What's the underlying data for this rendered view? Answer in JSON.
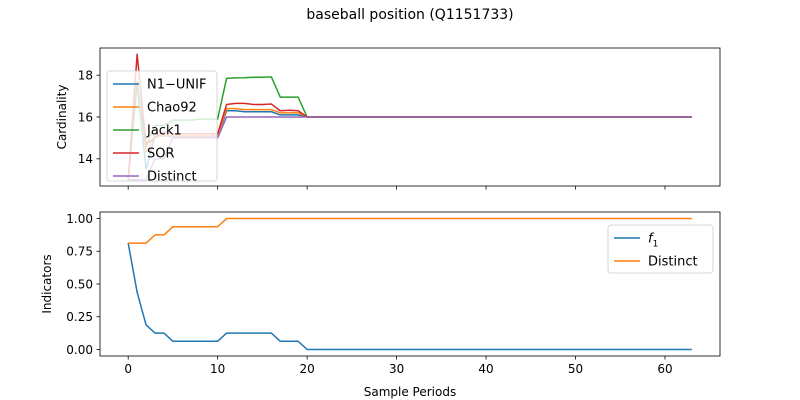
{
  "figure": {
    "suptitle": "baseball position (Q1151733)"
  },
  "chart_data": [
    {
      "type": "line",
      "ylabel": "Cardinality",
      "xlim": [
        -3.15,
        66.15
      ],
      "ylim": [
        12.7,
        19.3
      ],
      "yticks": [
        14,
        16,
        18
      ],
      "ytick_labels": [
        "14",
        "16",
        "18"
      ],
      "legend_position": "upper-left",
      "series": [
        {
          "name": "N1−UNIF",
          "color": "#1f77b4",
          "x": [
            0,
            1,
            2,
            3,
            4,
            5,
            6,
            7,
            8,
            9,
            10,
            11,
            12,
            13,
            14,
            15,
            16,
            17,
            18,
            19,
            20,
            63
          ],
          "y": [
            13.0,
            17.6,
            13.5,
            15.1,
            15.1,
            15.05,
            15.05,
            15.05,
            15.05,
            15.05,
            15.05,
            16.3,
            16.3,
            16.25,
            16.25,
            16.25,
            16.25,
            16.1,
            16.1,
            16.1,
            16.0,
            16.0
          ]
        },
        {
          "name": "Chao92",
          "color": "#ff7f0e",
          "x": [
            0,
            1,
            2,
            3,
            4,
            5,
            6,
            7,
            8,
            9,
            10,
            11,
            12,
            13,
            14,
            15,
            16,
            17,
            18,
            19,
            20,
            63
          ],
          "y": [
            13.0,
            17.7,
            14.3,
            15.1,
            15.1,
            15.1,
            15.1,
            15.1,
            15.1,
            15.1,
            15.1,
            16.4,
            16.4,
            16.35,
            16.35,
            16.35,
            16.35,
            16.2,
            16.2,
            16.2,
            16.0,
            16.0
          ]
        },
        {
          "name": "Jack1",
          "color": "#2ca02c",
          "x": [
            0,
            1,
            2,
            3,
            4,
            5,
            6,
            7,
            8,
            9,
            10,
            11,
            12,
            13,
            14,
            15,
            16,
            17,
            18,
            19,
            20,
            63
          ],
          "y": [
            13.0,
            17.7,
            14.6,
            15.6,
            15.6,
            15.85,
            15.85,
            15.85,
            15.9,
            15.9,
            15.9,
            17.85,
            17.87,
            17.88,
            17.9,
            17.9,
            17.92,
            16.95,
            16.95,
            16.95,
            16.0,
            16.0
          ]
        },
        {
          "name": "SOR",
          "color": "#d62728",
          "x": [
            0,
            1,
            2,
            3,
            4,
            5,
            6,
            7,
            8,
            9,
            10,
            11,
            12,
            13,
            14,
            15,
            16,
            17,
            18,
            19,
            20,
            63
          ],
          "y": [
            13.0,
            19.0,
            14.7,
            15.0,
            15.3,
            15.2,
            15.2,
            15.2,
            15.2,
            15.2,
            15.2,
            16.6,
            16.65,
            16.65,
            16.6,
            16.6,
            16.62,
            16.3,
            16.32,
            16.3,
            16.0,
            16.0
          ]
        },
        {
          "name": "Distinct",
          "color": "#9467bd",
          "x": [
            0,
            1,
            2,
            3,
            4,
            5,
            6,
            7,
            8,
            9,
            10,
            11,
            12,
            13,
            14,
            15,
            16,
            17,
            18,
            19,
            20,
            63
          ],
          "y": [
            13.0,
            13.0,
            13.0,
            14.0,
            14.0,
            15.0,
            15.0,
            15.0,
            15.0,
            15.0,
            15.0,
            16.0,
            16.0,
            16.0,
            16.0,
            16.0,
            16.0,
            16.0,
            16.0,
            16.0,
            16.0,
            16.0
          ]
        }
      ]
    },
    {
      "type": "line",
      "xlabel": "Sample Periods",
      "ylabel": "Indicators",
      "xlim": [
        -3.15,
        66.15
      ],
      "ylim": [
        -0.05,
        1.05
      ],
      "xticks": [
        0,
        10,
        20,
        30,
        40,
        50,
        60
      ],
      "xtick_labels": [
        "0",
        "10",
        "20",
        "30",
        "40",
        "50",
        "60"
      ],
      "yticks": [
        0.0,
        0.25,
        0.5,
        0.75,
        1.0
      ],
      "ytick_labels": [
        "0.00",
        "0.25",
        "0.50",
        "0.75",
        "1.00"
      ],
      "legend_position": "upper-right",
      "series": [
        {
          "name": "f1",
          "name_base": "f",
          "name_sub": "1",
          "color": "#1f77b4",
          "x": [
            0,
            1,
            2,
            3,
            4,
            5,
            6,
            7,
            8,
            9,
            10,
            11,
            12,
            13,
            14,
            15,
            16,
            17,
            18,
            19,
            20,
            63
          ],
          "y": [
            0.8125,
            0.4375,
            0.1875,
            0.125,
            0.125,
            0.0625,
            0.0625,
            0.0625,
            0.0625,
            0.0625,
            0.0625,
            0.125,
            0.125,
            0.125,
            0.125,
            0.125,
            0.125,
            0.0625,
            0.0625,
            0.0625,
            0.0,
            0.0
          ]
        },
        {
          "name": "Distinct",
          "color": "#ff7f0e",
          "x": [
            0,
            1,
            2,
            3,
            4,
            5,
            6,
            7,
            8,
            9,
            10,
            11,
            12,
            13,
            14,
            15,
            16,
            17,
            18,
            19,
            20,
            63
          ],
          "y": [
            0.8125,
            0.8125,
            0.8125,
            0.875,
            0.875,
            0.9375,
            0.9375,
            0.9375,
            0.9375,
            0.9375,
            0.9375,
            1.0,
            1.0,
            1.0,
            1.0,
            1.0,
            1.0,
            1.0,
            1.0,
            1.0,
            1.0,
            1.0
          ]
        }
      ]
    }
  ]
}
